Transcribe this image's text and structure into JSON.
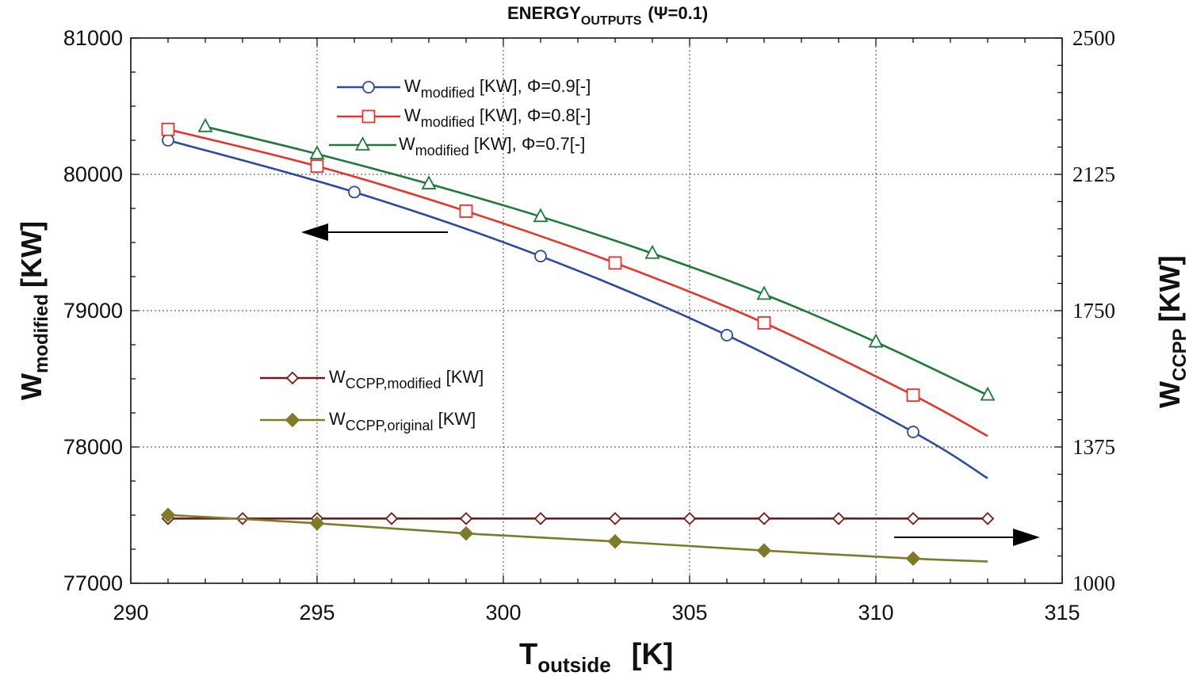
{
  "chart_data": {
    "type": "line",
    "title": {
      "main": "ENERGY",
      "sub": "OUTPUTS",
      "param": "(Ψ=0.1)"
    },
    "xlabel": {
      "main": "T",
      "sub": "outside",
      "unit": "[K]"
    },
    "ylabel_left": {
      "main": "W",
      "sub": "modified",
      "unit": "[KW]"
    },
    "ylabel_right": {
      "main": "W",
      "sub": "CCPP",
      "unit": "[KW]"
    },
    "xlim": [
      290,
      315
    ],
    "ylim_left": [
      77000,
      81000
    ],
    "ylim_right": [
      1000,
      2500
    ],
    "x_ticks": [
      "290",
      "295",
      "300",
      "305",
      "310",
      "315"
    ],
    "y_ticks_left": [
      "77000",
      "78000",
      "79000",
      "80000",
      "81000"
    ],
    "y_ticks_right": [
      "1000",
      "1375",
      "1750",
      "2125",
      "2500"
    ],
    "grid": true,
    "series": [
      {
        "name": "W_modified [KW], Φ=0.9[-]",
        "legend": {
          "main": "W",
          "sub": "modified",
          "rest": " [KW], Φ=0.9[-]"
        },
        "axis": "left",
        "color": "#2b4aa0",
        "marker": "circle",
        "x": [
          291,
          296,
          301,
          306,
          311,
          313
        ],
        "y": [
          80250,
          79870,
          79400,
          78820,
          78110,
          77770
        ],
        "marker_x": [
          291,
          296,
          301,
          306,
          311
        ]
      },
      {
        "name": "W_modified [KW], Φ=0.8[-]",
        "legend": {
          "main": "W",
          "sub": "modified",
          "rest": " [KW], Φ=0.8[-]"
        },
        "axis": "left",
        "color": "#e8322c",
        "marker": "square",
        "x": [
          291,
          295,
          299,
          303,
          307,
          311,
          313
        ],
        "y": [
          80330,
          80060,
          79730,
          79350,
          78910,
          78380,
          78080
        ],
        "marker_x": [
          291,
          295,
          299,
          303,
          307,
          311
        ]
      },
      {
        "name": "W_modified [KW], Φ=0.7[-]",
        "legend": {
          "main": "W",
          "sub": "modified",
          "rest": " [KW], Φ=0.7[-]"
        },
        "axis": "left",
        "color": "#1f7a3a",
        "marker": "triangle",
        "x": [
          292,
          295,
          298,
          301,
          304,
          307,
          310,
          313
        ],
        "y": [
          80350,
          80150,
          79930,
          79690,
          79420,
          79120,
          78770,
          78380
        ],
        "marker_x": [
          292,
          295,
          298,
          301,
          304,
          307,
          310,
          313
        ]
      },
      {
        "name": "W_CCPP,modified [KW]",
        "legend": {
          "main": "W",
          "sub": "CCPP,modified",
          "rest": " [KW]"
        },
        "axis": "right",
        "color": "#7a1616",
        "marker": "diamond-open",
        "x": [
          291,
          293,
          295,
          297,
          299,
          301,
          303,
          305,
          307,
          309,
          311,
          313
        ],
        "y": [
          1178,
          1178,
          1178,
          1178,
          1178,
          1178,
          1178,
          1178,
          1178,
          1178,
          1178,
          1178
        ],
        "marker_x": [
          291,
          293,
          295,
          297,
          299,
          301,
          303,
          305,
          307,
          309,
          311,
          313
        ]
      },
      {
        "name": "W_CCPP,original [KW]",
        "legend": {
          "main": "W",
          "sub": "CCPP,original",
          "rest": " [KW]"
        },
        "axis": "right",
        "color": "#7d7a2a",
        "marker": "diamond-filled",
        "x": [
          291,
          295,
          299,
          303,
          307,
          311,
          313
        ],
        "y": [
          1188,
          1165,
          1137,
          1115,
          1090,
          1068,
          1060
        ],
        "marker_x": [
          291,
          295,
          299,
          303,
          307,
          311
        ]
      }
    ],
    "annotations": [
      {
        "name": "left-axis-arrow",
        "direction": "left"
      },
      {
        "name": "right-axis-arrow",
        "direction": "right"
      }
    ]
  }
}
